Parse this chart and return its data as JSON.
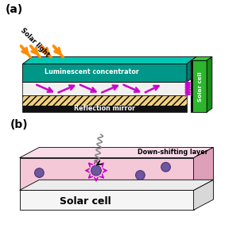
{
  "fig_width": 3.12,
  "fig_height": 2.92,
  "dpi": 100,
  "panel_a_label": "(a)",
  "panel_b_label": "(b)",
  "solar_light_text": "Solar light",
  "luminescent_text": "Luminescent concentrator",
  "reflection_text": "Reflection mirror",
  "solar_cell_text": "Solar cell",
  "down_shifting_text": "Down-shifting layer",
  "solar_cell_b_text": "Solar cell",
  "teal_top": "#00c5b0",
  "teal_front": "#009688",
  "teal_right": "#007a6e",
  "green_front": "#2db52d",
  "green_top": "#3dc83d",
  "green_right": "#1a8a1a",
  "orange_color": "#ff8c00",
  "magenta_color": "#cc00cc",
  "pink_front": "#f5c8d8",
  "pink_top": "#f9dce8",
  "pink_right": "#dda0b8",
  "white_cell_front": "#f5f5f5",
  "white_cell_right": "#d8d8d8",
  "white_cell_top": "#ececec",
  "hatch_color": "#f0d080",
  "mirror_color": "#111111",
  "purple_sphere": "#7055a0",
  "purple_edge": "#4a3575"
}
